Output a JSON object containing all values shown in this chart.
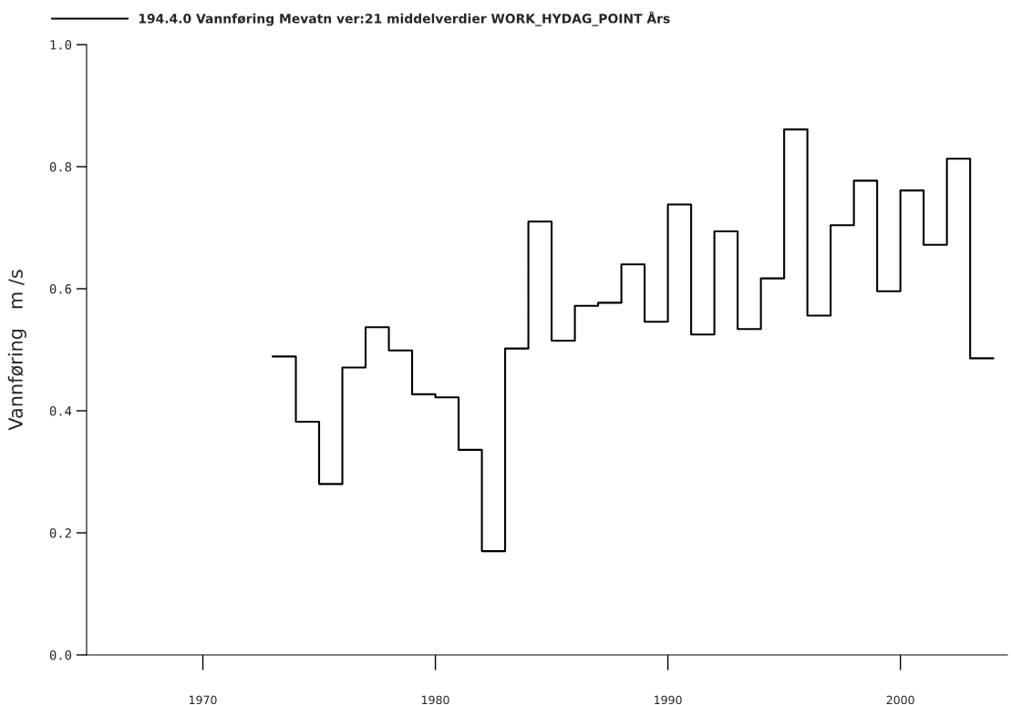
{
  "chart_data": {
    "type": "step",
    "ylabel": "Vannføring   m /s",
    "x": [
      1973,
      1974,
      1975,
      1976,
      1977,
      1978,
      1979,
      1980,
      1981,
      1982,
      1983,
      1984,
      1985,
      1986,
      1987,
      1988,
      1989,
      1990,
      1991,
      1992,
      1993,
      1994,
      1995,
      1996,
      1997,
      1998,
      1999,
      2000,
      2001,
      2002,
      2003,
      2004
    ],
    "series": [
      {
        "name": "194.4.0 Vannføring Mevatn ver:21 middelverdier WORK_HYDAG_POINT Års",
        "color": "#000000",
        "values": [
          0.489,
          0.382,
          0.28,
          0.471,
          0.537,
          0.499,
          0.427,
          0.422,
          0.336,
          0.17,
          0.502,
          0.71,
          0.515,
          0.572,
          0.577,
          0.64,
          0.546,
          0.738,
          0.525,
          0.694,
          0.534,
          0.617,
          0.861,
          0.556,
          0.704,
          0.777,
          0.596,
          0.761,
          0.672,
          0.813,
          0.486,
          0.486
        ]
      }
    ],
    "xlim": [
      1965,
      2004.6
    ],
    "xticks": [
      1970,
      1980,
      1990,
      2000
    ],
    "ylim": [
      0,
      1.0
    ],
    "yticks": [
      {
        "value": 0,
        "label": "0.0"
      },
      {
        "value": 0.2,
        "label": "0.2"
      },
      {
        "value": 0.4,
        "label": "0.4"
      },
      {
        "value": 0.6,
        "label": "0.6"
      },
      {
        "value": 0.8,
        "label": "0.8"
      },
      {
        "value": 1.0,
        "label": "1.0"
      }
    ],
    "legend": "top",
    "grid": false
  }
}
